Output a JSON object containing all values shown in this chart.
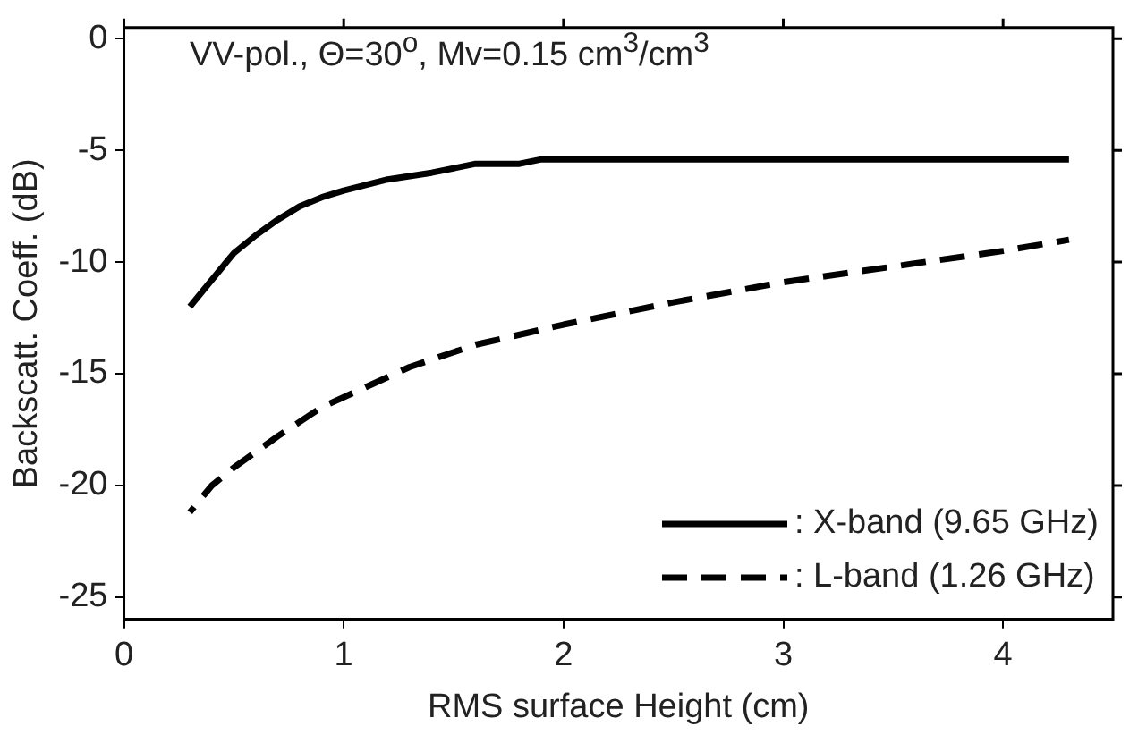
{
  "chart_data": {
    "type": "line",
    "xlabel": "RMS surface Height (cm)",
    "ylabel": "Backscatt. Coeff. (dB)",
    "annotations": [
      "VV-pol.,  Θ=30$^{o}$, Mv=0.15 cm$^{3}$/cm$^{3}$"
    ],
    "xlim": [
      0,
      4.5
    ],
    "xticks": [
      0,
      1,
      2,
      3,
      4
    ],
    "ylim": [
      -26,
      0.5
    ],
    "yticks": [
      0,
      -5,
      -10,
      -15,
      -20,
      -25
    ],
    "grid": false,
    "legend": "bottom right",
    "marker": "none",
    "series": [
      {
        "name": ": X-band (9.65 GHz)",
        "color": "#000000",
        "line_style": "solid",
        "x": [
          0.3,
          0.4,
          0.5,
          0.6,
          0.7,
          0.8,
          0.9,
          1.0,
          1.2,
          1.4,
          1.6,
          1.8,
          1.9,
          4.3
        ],
        "values": [
          -12,
          -10.8,
          -9.6,
          -8.8,
          -8.1,
          -7.5,
          -7.1,
          -6.8,
          -6.3,
          -6,
          -5.6,
          -5.6,
          -5.4,
          -5.4
        ]
      },
      {
        "name": ": L-band (1.26 GHz)",
        "color": "#000000",
        "line_style": "dashed",
        "x": [
          0.3,
          0.4,
          0.5,
          0.7,
          0.9,
          1.1,
          1.3,
          1.6,
          2.0,
          2.5,
          3.0,
          3.5,
          4.0,
          4.3
        ],
        "values": [
          -21.2,
          -20,
          -19.2,
          -17.8,
          -16.5,
          -15.6,
          -14.7,
          -13.7,
          -12.8,
          -11.8,
          -10.9,
          -10.2,
          -9.5,
          -9
        ]
      }
    ]
  }
}
